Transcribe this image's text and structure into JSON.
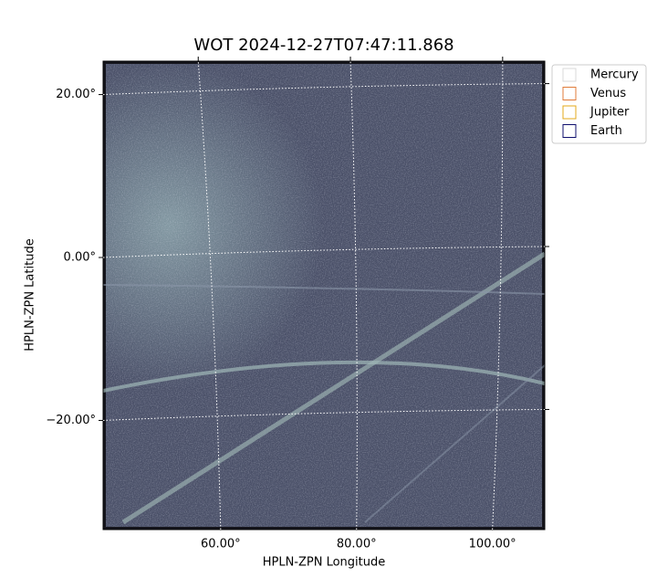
{
  "chart_data": {
    "type": "image",
    "title": "WOT 2024-12-27T07:47:11.868",
    "xlabel": "HPLN-ZPN Longitude",
    "ylabel": "HPLN-ZPN Latitude",
    "xlim": [
      42.7,
      107.7
    ],
    "ylim": [
      -33.4,
      24.1
    ],
    "xticks": [
      {
        "value": 60,
        "label": "60.00°"
      },
      {
        "value": 80,
        "label": "80.00°"
      },
      {
        "value": 100,
        "label": "100.00°"
      }
    ],
    "yticks": [
      {
        "value": 20,
        "label": "20.00°"
      },
      {
        "value": 0,
        "label": "0.00°"
      },
      {
        "value": -20,
        "label": "−20.00°"
      }
    ],
    "grid": true,
    "legend_loc": "upper right",
    "series": [
      {
        "name": "Mercury",
        "color": "#d9d9d9"
      },
      {
        "name": "Venus",
        "color": "#e07b39"
      },
      {
        "name": "Jupiter",
        "color": "#e3a81b"
      },
      {
        "name": "Earth",
        "color": "#10106e"
      }
    ]
  }
}
